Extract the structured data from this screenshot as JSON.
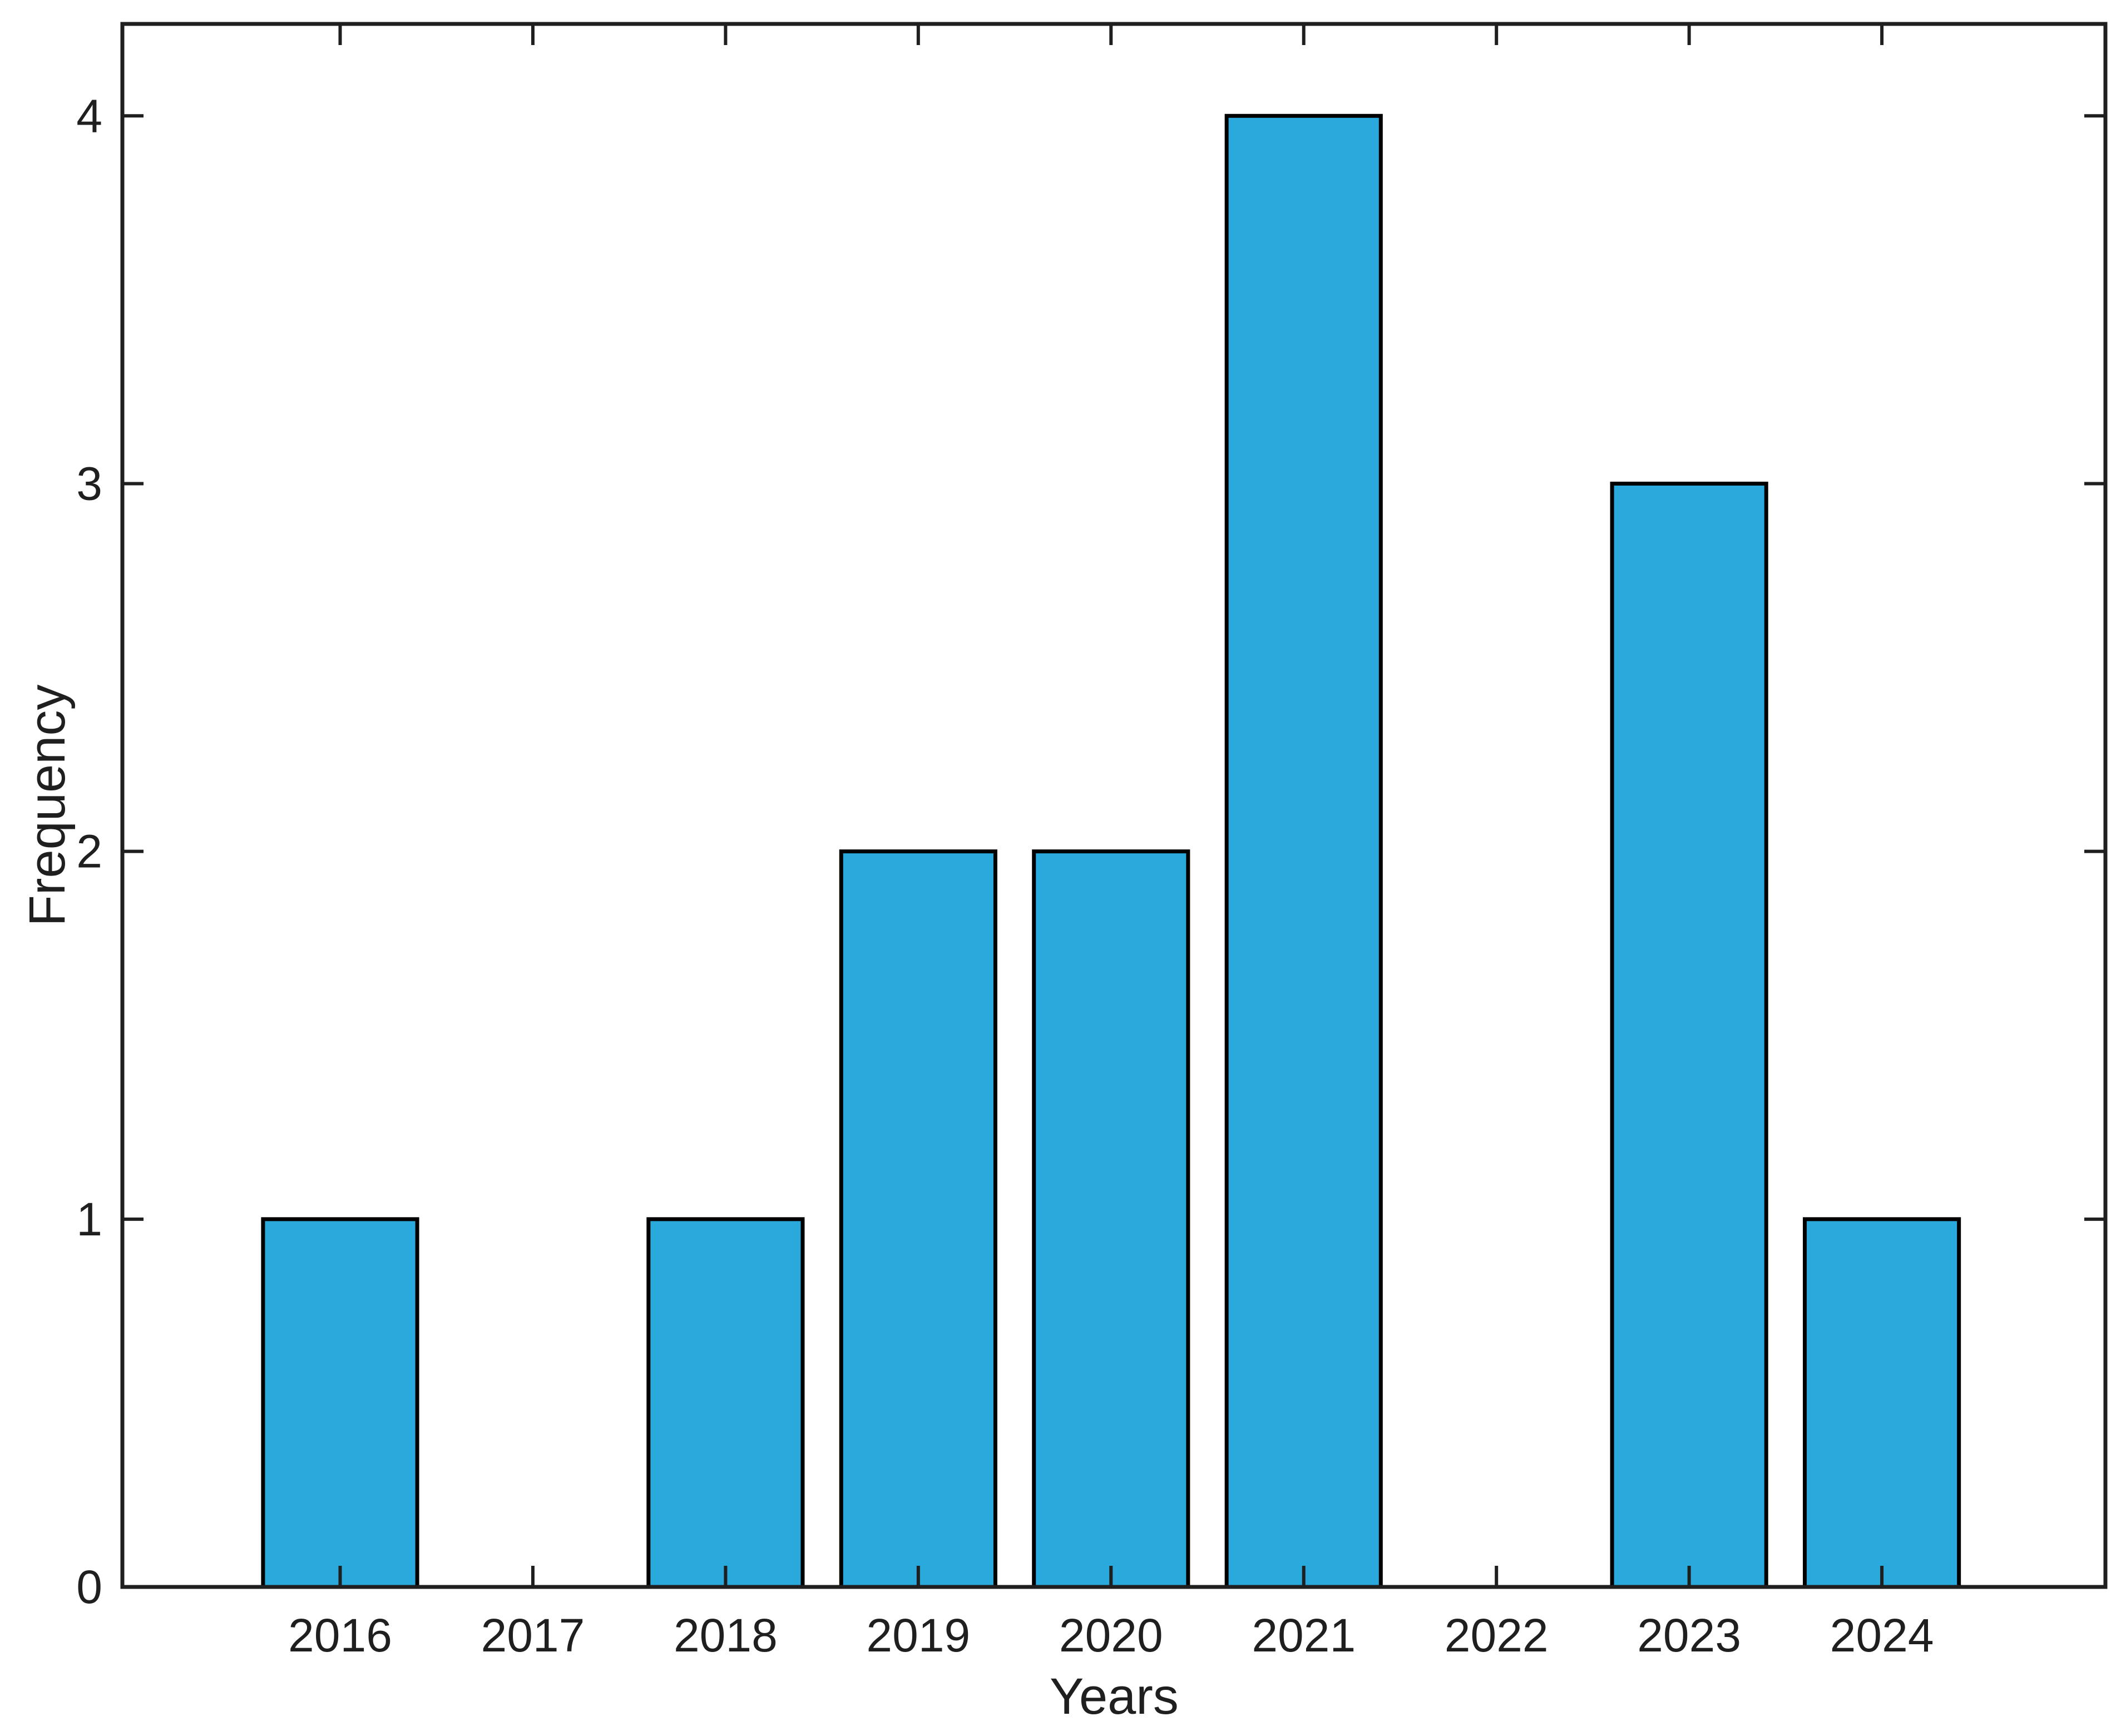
{
  "figure": {
    "background": "#ffffff"
  },
  "chart_data": {
    "type": "bar",
    "title": "",
    "xlabel": "Years",
    "ylabel": "Frequency",
    "categories": [
      2016,
      2017,
      2018,
      2019,
      2020,
      2021,
      2022,
      2023,
      2024
    ],
    "values": [
      1,
      0,
      1,
      2,
      2,
      4,
      0,
      3,
      1
    ],
    "yticks": [
      0,
      1,
      2,
      3,
      4
    ],
    "ytick_labels": [
      "0",
      "1",
      "2",
      "3",
      "4"
    ],
    "xtick_labels": [
      "2016",
      "2017",
      "2018",
      "2019",
      "2020",
      "2021",
      "2022",
      "2023",
      "2024"
    ],
    "xlim": [
      2014.87,
      2025.16
    ],
    "ylim": [
      0,
      4.25
    ],
    "bar_width_fraction": 0.8,
    "bar_color": "#29A9DC",
    "bar_edge_color": "#000000",
    "axis_color": "#1f1f1f",
    "text_color": "#1f1f1f",
    "grid": false,
    "legend": "none",
    "tick_direction": "in",
    "box": true
  }
}
